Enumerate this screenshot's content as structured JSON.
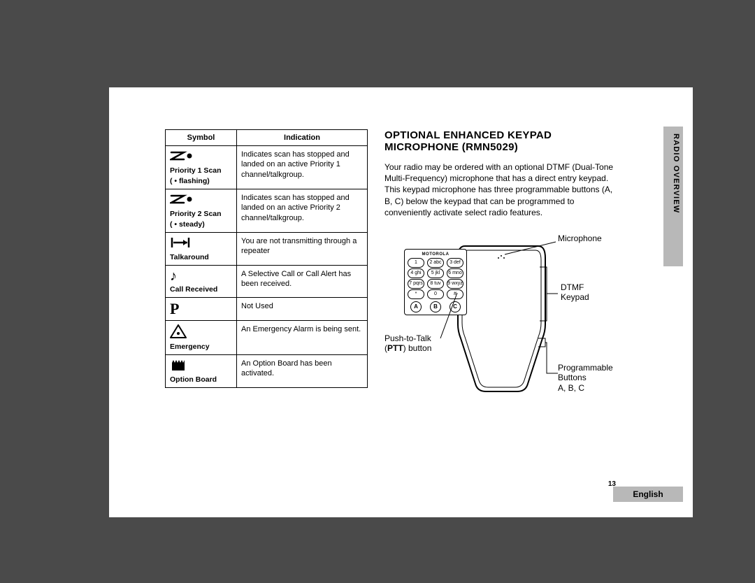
{
  "table": {
    "headers": [
      "Symbol",
      "Indication"
    ],
    "rows": [
      {
        "symbol_svg": "z-dot",
        "label": "Priority 1 Scan",
        "sublabel": "( • flashing)",
        "desc": "Indicates scan has stopped and landed on an active Priority 1 channel/talkgroup."
      },
      {
        "symbol_svg": "z-dot",
        "label": "Priority 2 Scan",
        "sublabel": "( • steady)",
        "desc": "Indicates scan has stopped and landed on an active Priority 2 channel/talkgroup."
      },
      {
        "symbol_svg": "talkaround",
        "label": "Talkaround",
        "sublabel": "",
        "desc": "You are not transmitting through a repeater"
      },
      {
        "symbol_svg": "call",
        "label": "Call Received",
        "sublabel": "",
        "desc": "A Selective Call or Call Alert has been received."
      },
      {
        "symbol_svg": "p",
        "label": "",
        "sublabel": "",
        "desc": "Not Used"
      },
      {
        "symbol_svg": "emergency",
        "label": "Emergency",
        "sublabel": "",
        "desc": "An Emergency Alarm is being sent."
      },
      {
        "symbol_svg": "option",
        "label": "Option Board",
        "sublabel": "",
        "desc": "An Option Board has been activated."
      }
    ]
  },
  "section": {
    "title_line1": "OPTIONAL ENHANCED KEYPAD",
    "title_line2": "MICROPHONE (RMN5029)",
    "body": "Your radio may be ordered with an optional DTMF (Dual-Tone Multi-Frequency) microphone that has a direct entry keypad. This keypad microphone has three programmable buttons (A, B, C) below the keypad that can be programmed to conveniently activate select radio features."
  },
  "diagram": {
    "logo": "MOTOROLA",
    "keys": [
      [
        "1",
        "2 abc",
        "3 def"
      ],
      [
        "4 ghi",
        "5 jkl",
        "6 mno"
      ],
      [
        "7 pqrs",
        "8 tuv",
        "9 wxyz"
      ],
      [
        "*",
        "0",
        "#"
      ]
    ],
    "prog_keys": [
      "A",
      "B",
      "C"
    ],
    "callouts": {
      "mic": "Microphone",
      "dtmf_line1": "DTMF",
      "dtmf_line2": "Keypad",
      "ptt_line1": "Push-to-Talk",
      "ptt_line2_bold": "PTT",
      "ptt_line2_rest": ") button",
      "prog_line1": "Programmable",
      "prog_line2": "Buttons",
      "prog_line3": "A, B, C"
    }
  },
  "side_tab": "RADIO OVERVIEW",
  "page_number": "13",
  "language": "English"
}
